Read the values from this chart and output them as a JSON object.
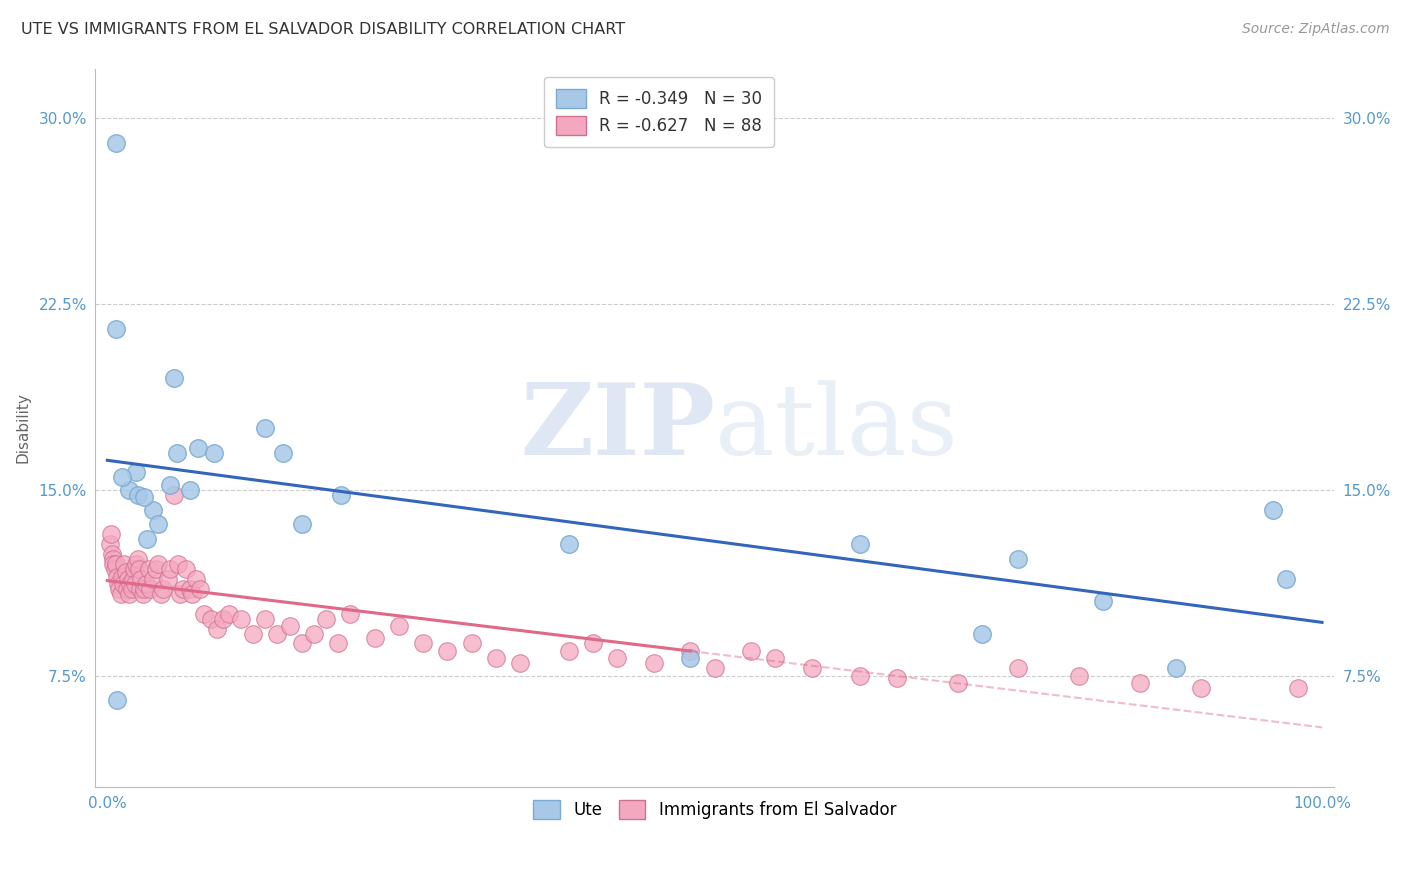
{
  "title": "UTE VS IMMIGRANTS FROM EL SALVADOR DISABILITY CORRELATION CHART",
  "source": "Source: ZipAtlas.com",
  "ylabel": "Disability",
  "watermark": "ZIPatlas",
  "xlim": [
    -0.01,
    1.01
  ],
  "ylim": [
    0.03,
    0.32
  ],
  "yticks": [
    0.075,
    0.15,
    0.225,
    0.3
  ],
  "yticklabels": [
    "7.5%",
    "15.0%",
    "22.5%",
    "30.0%"
  ],
  "ute_color": "#a8c8e8",
  "ute_edge_color": "#7aaad0",
  "sal_color": "#f4a8c0",
  "sal_edge_color": "#d07090",
  "ute_R": -0.349,
  "ute_N": 30,
  "sal_R": -0.627,
  "sal_N": 88,
  "legend_label1": "Ute",
  "legend_label2": "Immigrants from El Salvador",
  "ute_line_color": "#3366bb",
  "sal_line_color": "#e06888",
  "background_color": "#ffffff",
  "grid_color": "#cccccc",
  "ute_x": [
    0.007,
    0.055,
    0.13,
    0.007,
    0.024,
    0.018,
    0.012,
    0.025,
    0.038,
    0.042,
    0.033,
    0.052,
    0.068,
    0.057,
    0.075,
    0.088,
    0.145,
    0.008,
    0.03,
    0.38,
    0.48,
    0.62,
    0.72,
    0.75,
    0.82,
    0.88,
    0.96,
    0.97,
    0.16,
    0.192
  ],
  "ute_y": [
    0.29,
    0.195,
    0.175,
    0.215,
    0.157,
    0.15,
    0.155,
    0.148,
    0.142,
    0.136,
    0.13,
    0.152,
    0.15,
    0.165,
    0.167,
    0.165,
    0.165,
    0.065,
    0.147,
    0.128,
    0.082,
    0.128,
    0.092,
    0.122,
    0.105,
    0.078,
    0.142,
    0.114,
    0.136,
    0.148
  ],
  "sal_x": [
    0.002,
    0.003,
    0.004,
    0.005,
    0.005,
    0.006,
    0.007,
    0.008,
    0.009,
    0.01,
    0.011,
    0.012,
    0.013,
    0.014,
    0.015,
    0.016,
    0.017,
    0.018,
    0.019,
    0.02,
    0.021,
    0.022,
    0.023,
    0.024,
    0.025,
    0.026,
    0.027,
    0.028,
    0.029,
    0.03,
    0.032,
    0.034,
    0.035,
    0.038,
    0.04,
    0.042,
    0.044,
    0.046,
    0.05,
    0.052,
    0.055,
    0.058,
    0.06,
    0.062,
    0.065,
    0.068,
    0.07,
    0.073,
    0.076,
    0.08,
    0.085,
    0.09,
    0.095,
    0.1,
    0.11,
    0.12,
    0.13,
    0.14,
    0.15,
    0.16,
    0.17,
    0.18,
    0.19,
    0.2,
    0.22,
    0.24,
    0.26,
    0.28,
    0.3,
    0.32,
    0.34,
    0.38,
    0.4,
    0.42,
    0.45,
    0.48,
    0.5,
    0.53,
    0.55,
    0.58,
    0.62,
    0.65,
    0.7,
    0.75,
    0.8,
    0.85,
    0.9,
    0.98
  ],
  "sal_y": [
    0.128,
    0.132,
    0.124,
    0.122,
    0.12,
    0.118,
    0.12,
    0.115,
    0.112,
    0.11,
    0.108,
    0.115,
    0.112,
    0.12,
    0.117,
    0.11,
    0.114,
    0.108,
    0.112,
    0.11,
    0.114,
    0.118,
    0.112,
    0.12,
    0.122,
    0.118,
    0.11,
    0.114,
    0.108,
    0.11,
    0.112,
    0.118,
    0.11,
    0.114,
    0.118,
    0.12,
    0.108,
    0.11,
    0.114,
    0.118,
    0.148,
    0.12,
    0.108,
    0.11,
    0.118,
    0.11,
    0.108,
    0.114,
    0.11,
    0.1,
    0.098,
    0.094,
    0.098,
    0.1,
    0.098,
    0.092,
    0.098,
    0.092,
    0.095,
    0.088,
    0.092,
    0.098,
    0.088,
    0.1,
    0.09,
    0.095,
    0.088,
    0.085,
    0.088,
    0.082,
    0.08,
    0.085,
    0.088,
    0.082,
    0.08,
    0.085,
    0.078,
    0.085,
    0.082,
    0.078,
    0.075,
    0.074,
    0.072,
    0.078,
    0.075,
    0.072,
    0.07,
    0.07
  ]
}
